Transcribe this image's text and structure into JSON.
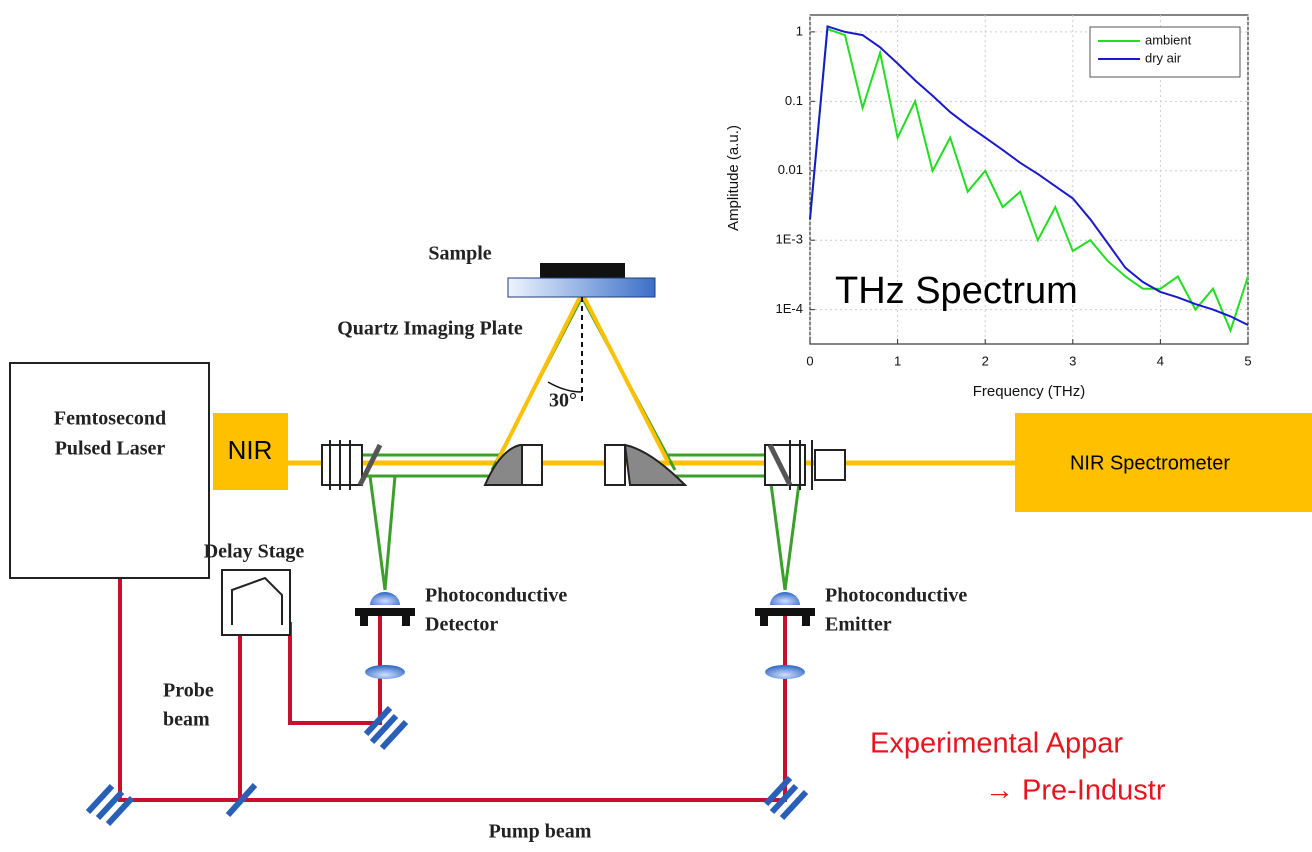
{
  "diagram": {
    "sample": "Sample",
    "plate": "Quartz Imaging Plate",
    "angle": "30°",
    "laser": [
      "Femtosecond",
      "Pulsed Laser"
    ],
    "nir": "NIR",
    "spectrometer": "NIR Spectrometer",
    "delay_stage": "Delay Stage",
    "detector": [
      "Photoconductive",
      "Detector"
    ],
    "emitter": [
      "Photoconductive",
      "Emitter"
    ],
    "probe": [
      "Probe",
      "beam"
    ],
    "pump": "Pump beam",
    "caption": [
      "Experimental Appar",
      "→ Pre-Industr"
    ],
    "overlay": "THz Spectrum"
  },
  "chart_data": {
    "type": "line",
    "x_label": "Frequency (THz)",
    "y_label": "Amplitude (a.u.)",
    "log_y": true,
    "grid": true,
    "legend": "upper right",
    "xlim": [
      0,
      5
    ],
    "ylim": [
      3.2e-05,
      1.75
    ],
    "xticks": [
      0,
      1,
      2,
      3,
      4,
      5
    ],
    "yticks": [
      1,
      0.1,
      0.01,
      {
        "value": 0.001,
        "label": "1E-3"
      },
      {
        "value": 0.0001,
        "label": "1E-4"
      }
    ],
    "x": [
      0,
      0.2,
      0.4,
      0.6,
      0.8,
      1.0,
      1.2,
      1.4,
      1.6,
      1.8,
      2.0,
      2.2,
      2.4,
      2.6,
      2.8,
      3.0,
      3.2,
      3.4,
      3.6,
      3.8,
      4.0,
      4.2,
      4.4,
      4.6,
      4.8,
      5.0
    ],
    "series": [
      {
        "name": "ambient",
        "color": "#22dd22",
        "values": [
          0.002,
          1.1,
          0.9,
          0.08,
          0.5,
          0.03,
          0.1,
          0.01,
          0.03,
          0.005,
          0.01,
          0.003,
          0.005,
          0.001,
          0.003,
          0.0007,
          0.001,
          0.0005,
          0.0003,
          0.0002,
          0.0002,
          0.0003,
          0.0001,
          0.0002,
          5e-05,
          0.0003
        ]
      },
      {
        "name": "dry air",
        "color": "#1a1acc",
        "values": [
          0.002,
          1.2,
          1.0,
          0.9,
          0.6,
          0.35,
          0.2,
          0.12,
          0.07,
          0.045,
          0.03,
          0.02,
          0.013,
          0.009,
          0.006,
          0.004,
          0.002,
          0.0009,
          0.0004,
          0.00025,
          0.00018,
          0.00015,
          0.00012,
          0.0001,
          8e-05,
          6e-05
        ]
      }
    ]
  }
}
